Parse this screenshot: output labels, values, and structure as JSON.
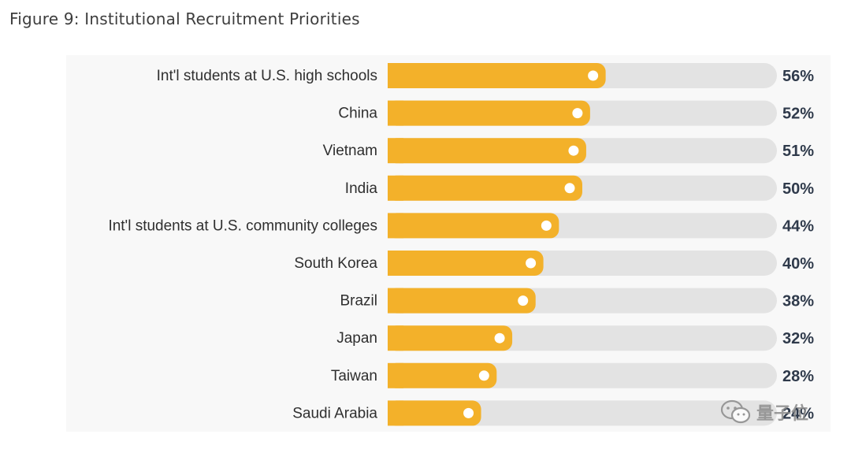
{
  "title": "Figure 9: Institutional Recruitment Priorities",
  "watermark": {
    "text": "量子位",
    "icon": "wechat-icon"
  },
  "colors": {
    "bar_fill": "#f3b12a",
    "bar_track": "#e3e3e3",
    "marker": "#ffffff",
    "panel": "#f8f8f8",
    "value_text": "#2f3a4b"
  },
  "chart_data": {
    "type": "bar",
    "orientation": "horizontal",
    "title": "Figure 9: Institutional Recruitment Priorities",
    "xlim": [
      0,
      100
    ],
    "grid": false,
    "categories": [
      "Int'l students at U.S. high schools",
      "China",
      "Vietnam",
      "India",
      "Int'l students at U.S. community colleges",
      "South Korea",
      "Brazil",
      "Japan",
      "Taiwan",
      "Saudi Arabia"
    ],
    "values": [
      56,
      52,
      51,
      50,
      44,
      40,
      38,
      32,
      28,
      24
    ],
    "value_labels": [
      "56%",
      "52%",
      "51%",
      "50%",
      "44%",
      "40%",
      "38%",
      "32%",
      "28%",
      "24%"
    ]
  }
}
